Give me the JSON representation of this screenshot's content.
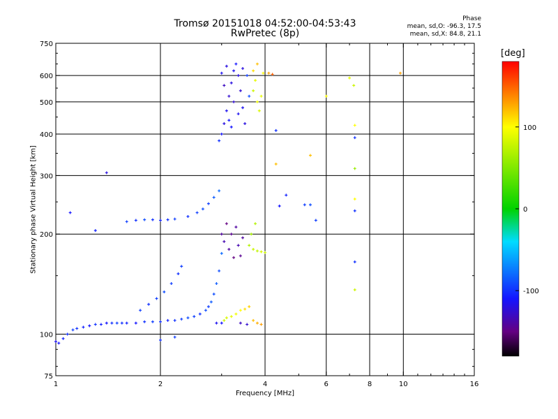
{
  "title": "Tromsø 20151018 04:52:00-04:53:43",
  "subtitle": "RwPretec (8p)",
  "phase_stats": {
    "title": "Phase",
    "line_o": "mean, sd,O: -96.3, 17.5",
    "line_x": "mean, sd,X:  84.8, 21.1"
  },
  "chart_data": {
    "type": "scatter",
    "xlabel": "Frequency [MHz]",
    "ylabel": "Stationary phase Virtual Height [km]",
    "xscale": "log",
    "yscale": "log",
    "xlim": [
      1,
      16
    ],
    "ylim": [
      75,
      750
    ],
    "xticks": [
      1,
      2,
      4,
      6,
      8,
      10,
      16
    ],
    "xtick_labels": [
      "1",
      "2",
      "4",
      "6",
      "8",
      "10",
      "16"
    ],
    "xgrid": [
      2,
      4,
      6,
      8,
      10
    ],
    "yticks": [
      75,
      100,
      200,
      300,
      400,
      500,
      600,
      750
    ],
    "ytick_labels": [
      "75",
      "100",
      "200",
      "300",
      "400",
      "500",
      "600",
      "750"
    ],
    "ygrid": [
      100,
      200,
      300,
      400,
      500,
      600
    ],
    "grid": true,
    "colorbar": {
      "title": "[deg]",
      "min": -180,
      "max": 180,
      "ticks": [
        100,
        0,
        -100
      ],
      "tick_labels": [
        "100",
        "0",
        "-100"
      ]
    },
    "series": [
      {
        "points": [
          [
            1.0,
            95,
            -115
          ],
          [
            1.02,
            94,
            -110
          ],
          [
            1.05,
            97,
            -105
          ],
          [
            1.08,
            100,
            -100
          ],
          [
            1.12,
            103,
            -95
          ],
          [
            1.15,
            104,
            -100
          ],
          [
            1.2,
            105,
            -105
          ],
          [
            1.25,
            106,
            -110
          ],
          [
            1.3,
            107,
            -100
          ],
          [
            1.35,
            107,
            -105
          ],
          [
            1.4,
            108,
            -110
          ],
          [
            1.45,
            108,
            -100
          ],
          [
            1.5,
            108,
            -95
          ],
          [
            1.55,
            108,
            -100
          ],
          [
            1.6,
            108,
            -105
          ],
          [
            1.7,
            108,
            -110
          ],
          [
            1.8,
            109,
            -100
          ],
          [
            1.9,
            109,
            -95
          ],
          [
            2.0,
            109,
            -100
          ],
          [
            2.1,
            110,
            -105
          ],
          [
            2.2,
            110,
            -100
          ],
          [
            2.3,
            111,
            -95
          ],
          [
            2.4,
            112,
            -90
          ],
          [
            2.5,
            113,
            -95
          ],
          [
            2.6,
            115,
            -100
          ],
          [
            2.7,
            118,
            -90
          ],
          [
            2.75,
            121,
            -95
          ],
          [
            2.8,
            125,
            -85
          ],
          [
            2.85,
            132,
            -90
          ],
          [
            2.9,
            142,
            -85
          ],
          [
            2.95,
            155,
            -90
          ],
          [
            3.0,
            175,
            -80
          ]
        ]
      },
      {
        "points": [
          [
            1.75,
            118,
            -95
          ],
          [
            1.85,
            123,
            -100
          ],
          [
            1.95,
            128,
            -95
          ],
          [
            2.05,
            134,
            -90
          ],
          [
            2.15,
            142,
            -95
          ],
          [
            2.25,
            152,
            -100
          ],
          [
            2.3,
            160,
            -95
          ]
        ]
      },
      {
        "points": [
          [
            1.6,
            218,
            -95
          ],
          [
            1.7,
            220,
            -100
          ],
          [
            1.8,
            221,
            -90
          ],
          [
            1.9,
            221,
            -100
          ],
          [
            2.0,
            220,
            -105
          ],
          [
            2.1,
            221,
            -100
          ],
          [
            2.2,
            222,
            -95
          ],
          [
            2.4,
            226,
            -100
          ],
          [
            2.55,
            232,
            -95
          ],
          [
            2.65,
            238,
            -90
          ],
          [
            2.75,
            247,
            -95
          ],
          [
            2.85,
            258,
            -85
          ],
          [
            2.95,
            270,
            -80
          ]
        ]
      },
      {
        "points": [
          [
            1.1,
            232,
            -110
          ],
          [
            1.4,
            306,
            -120
          ],
          [
            1.3,
            205,
            -105
          ],
          [
            2.0,
            96,
            -100
          ],
          [
            2.2,
            98,
            -95
          ]
        ]
      },
      {
        "points": [
          [
            2.95,
            382,
            -100
          ],
          [
            3.0,
            400,
            -110
          ],
          [
            3.05,
            430,
            -120
          ],
          [
            3.1,
            470,
            -115
          ],
          [
            3.15,
            520,
            -125
          ],
          [
            3.2,
            570,
            -120
          ],
          [
            3.25,
            620,
            -115
          ],
          [
            3.3,
            650,
            -110
          ],
          [
            3.35,
            600,
            -120
          ],
          [
            3.4,
            540,
            -125
          ],
          [
            3.45,
            480,
            -115
          ],
          [
            3.5,
            430,
            -120
          ],
          [
            3.55,
            600,
            -95
          ],
          [
            3.6,
            520,
            -90
          ],
          [
            3.05,
            560,
            -130
          ],
          [
            3.15,
            440,
            -110
          ],
          [
            3.25,
            500,
            -125
          ],
          [
            3.35,
            460,
            -115
          ],
          [
            3.45,
            630,
            -120
          ],
          [
            3.0,
            610,
            -115
          ],
          [
            3.1,
            640,
            -120
          ],
          [
            3.2,
            420,
            -110
          ]
        ]
      },
      {
        "points": [
          [
            3.7,
            540,
            80
          ],
          [
            3.75,
            580,
            90
          ],
          [
            3.8,
            500,
            95
          ],
          [
            3.85,
            470,
            85
          ],
          [
            3.9,
            520,
            90
          ],
          [
            3.95,
            610,
            100
          ],
          [
            3.7,
            620,
            110
          ],
          [
            3.8,
            650,
            120
          ],
          [
            4.1,
            610,
            130
          ]
        ]
      },
      {
        "points": [
          [
            3.0,
            200,
            -140
          ],
          [
            3.05,
            190,
            -135
          ],
          [
            3.1,
            215,
            -150
          ],
          [
            3.15,
            180,
            -140
          ],
          [
            3.2,
            200,
            -145
          ],
          [
            3.25,
            170,
            -150
          ],
          [
            3.3,
            210,
            -140
          ],
          [
            3.35,
            185,
            -135
          ],
          [
            3.4,
            172,
            -145
          ],
          [
            3.45,
            195,
            -140
          ]
        ]
      },
      {
        "points": [
          [
            3.6,
            185,
            70
          ],
          [
            3.7,
            180,
            80
          ],
          [
            3.8,
            178,
            75
          ],
          [
            3.9,
            177,
            85
          ],
          [
            4.0,
            176,
            80
          ],
          [
            3.65,
            200,
            65
          ],
          [
            3.75,
            215,
            70
          ]
        ]
      },
      {
        "points": [
          [
            2.9,
            108,
            -115
          ],
          [
            3.0,
            108,
            -110
          ],
          [
            3.05,
            110,
            80
          ],
          [
            3.1,
            112,
            85
          ],
          [
            3.2,
            113,
            90
          ],
          [
            3.3,
            115,
            95
          ],
          [
            3.4,
            118,
            100
          ],
          [
            3.5,
            119,
            110
          ],
          [
            3.6,
            121,
            115
          ],
          [
            3.7,
            110,
            120
          ],
          [
            3.8,
            108,
            125
          ],
          [
            3.9,
            107,
            130
          ],
          [
            3.4,
            108,
            -130
          ],
          [
            3.55,
            107,
            -125
          ]
        ]
      },
      {
        "points": [
          [
            4.3,
            325,
            120
          ],
          [
            4.3,
            410,
            -100
          ],
          [
            4.6,
            262,
            -105
          ],
          [
            4.4,
            243,
            -110
          ],
          [
            5.2,
            245,
            -95
          ],
          [
            5.4,
            245,
            -90
          ],
          [
            5.6,
            220,
            -95
          ],
          [
            5.4,
            345,
            120
          ],
          [
            6.0,
            520,
            100
          ],
          [
            7.0,
            590,
            90
          ],
          [
            7.2,
            560,
            80
          ],
          [
            7.25,
            425,
            100
          ],
          [
            7.25,
            390,
            -100
          ],
          [
            7.25,
            315,
            60
          ],
          [
            7.25,
            255,
            100
          ],
          [
            7.25,
            235,
            -100
          ],
          [
            7.25,
            165,
            -100
          ],
          [
            7.25,
            136,
            80
          ],
          [
            9.8,
            610,
            130
          ],
          [
            4.2,
            605,
            150
          ]
        ]
      }
    ]
  }
}
